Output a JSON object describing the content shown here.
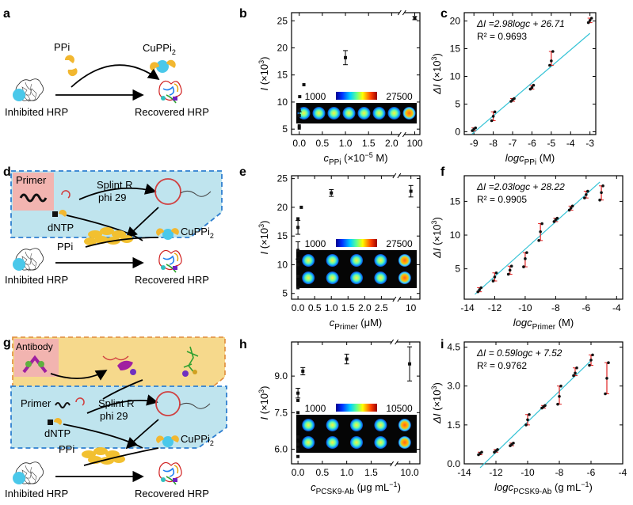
{
  "panels": {
    "a": {
      "letter": "a",
      "ppi": "PPi",
      "product": "CuPPi",
      "product_sub": "2",
      "left_label": "Inhibited HRP",
      "right_label": "Recovered HRP"
    },
    "d": {
      "letter": "d",
      "primer": "Primer",
      "splint": "Splint R",
      "phi": "phi 29",
      "dntp": "dNTP",
      "ppi": "PPi",
      "product": "CuPPi",
      "product_sub": "2",
      "left_label": "Inhibited HRP",
      "right_label": "Recovered HRP"
    },
    "g": {
      "letter": "g",
      "antibody": "Antibody",
      "primer": "Primer",
      "splint": "Splint R",
      "phi": "phi 29",
      "dntp": "dNTP",
      "ppi": "PPi",
      "product": "CuPPi",
      "product_sub": "2",
      "left_label": "Inhibited HRP",
      "right_label": "Recovered HRP"
    }
  },
  "colors": {
    "marker": "#111111",
    "fit_line": "#35c3d6",
    "errbar_red": "#e02020",
    "box_blue": "#bfe4ee",
    "box_border": "#2f7fd0",
    "box_yellow": "#f6d98c",
    "box_orange": "#e08a3a",
    "primer_bg": "#f2b4b0"
  },
  "chart_data": [
    {
      "id": "b",
      "letter": "b",
      "type": "scatter",
      "ylabel_italic": "I",
      "ylabel_rest": " (×10",
      "ylabel_sup": "3",
      "ylabel_end": ")",
      "xlabel_main": "c",
      "xlabel_sub": "PPi",
      "xlabel_rest": "  (×10",
      "xlabel_sup": "−5",
      "xlabel_end": " M)",
      "ylim": [
        4,
        26.5
      ],
      "yticks": [
        5,
        10,
        15,
        20,
        25
      ],
      "xticks": [
        "0.0",
        "0.5",
        "1.0",
        "1.5",
        "2.0",
        "100"
      ],
      "x_break": true,
      "colorbar": {
        "min": "1000",
        "max": "27500",
        "rows": 1
      },
      "points": [
        {
          "x": 0.0,
          "y": 5.2
        },
        {
          "x": 0.0,
          "y": 5.6
        },
        {
          "x": 0.0,
          "y": 7.5,
          "err": 0.7
        },
        {
          "x": 0.0,
          "y": 8.5
        },
        {
          "x": 0.01,
          "y": 11.0
        },
        {
          "x": 0.1,
          "y": 13.2
        },
        {
          "x": 1.0,
          "y": 18.2,
          "err": 1.3
        },
        {
          "x": 100,
          "y": 25.5,
          "err": 0.3
        }
      ]
    },
    {
      "id": "c",
      "letter": "c",
      "type": "scatter",
      "ylabel_italic": "ΔI",
      "ylabel_rest": " (×10",
      "ylabel_sup": "3",
      "ylabel_end": ")",
      "xlabel_main": "logc",
      "xlabel_sub": "PPi",
      "xlabel_rest": " (M)",
      "xlabel_sup": "",
      "xlabel_end": "",
      "xlim": [
        -9.5,
        -2.7
      ],
      "ylim": [
        -0.5,
        21.5
      ],
      "xticks": [
        -9,
        -8,
        -7,
        -6,
        -5,
        -4,
        -3
      ],
      "yticks": [
        0,
        5,
        10,
        15,
        20
      ],
      "equation": "ΔI =2.98logc + 26.71",
      "r2": "R² = 0.9693",
      "fit": {
        "slope": 2.98,
        "intercept": 26.71,
        "x0": -9.1,
        "x1": -3.0
      },
      "points": [
        {
          "x": -9,
          "ys": [
            0.2,
            0.5,
            0.7
          ]
        },
        {
          "x": -8,
          "ys": [
            2.0,
            2.8,
            3.6
          ]
        },
        {
          "x": -7,
          "ys": [
            5.5,
            5.8,
            6.0
          ]
        },
        {
          "x": -6,
          "ys": [
            7.7,
            8.0,
            8.4
          ]
        },
        {
          "x": -5,
          "ys": [
            12.0,
            12.8,
            14.5
          ]
        },
        {
          "x": -3,
          "ys": [
            19.7,
            20.1,
            20.5
          ]
        }
      ]
    },
    {
      "id": "e",
      "letter": "e",
      "type": "scatter",
      "ylabel_italic": "I",
      "ylabel_rest": " (×10",
      "ylabel_sup": "3",
      "ylabel_end": ")",
      "xlabel_main": "c",
      "xlabel_sub": "Primer",
      "xlabel_rest": " (μM)",
      "xlabel_sup": "",
      "xlabel_end": "",
      "ylim": [
        4,
        25.5
      ],
      "yticks": [
        5,
        10,
        15,
        20,
        25
      ],
      "xticks": [
        "0.0",
        "0.5",
        "1.0",
        "1.5",
        "2.0",
        "2.5",
        "10"
      ],
      "x_break": true,
      "colorbar": {
        "min": "1000",
        "max": "27500",
        "rows": 2
      },
      "points": [
        {
          "x": 0.0,
          "y": 6.0
        },
        {
          "x": 0.0,
          "y": 8.0
        },
        {
          "x": 0.0,
          "y": 10.0
        },
        {
          "x": 0.0,
          "y": 11.0
        },
        {
          "x": 0.0,
          "y": 12.5,
          "err": 1.5
        },
        {
          "x": 0.0,
          "y": 16.5,
          "err": 1.2
        },
        {
          "x": 0.0,
          "y": 18.0
        },
        {
          "x": 0.1,
          "y": 20.0
        },
        {
          "x": 1.0,
          "y": 22.5,
          "err": 0.6
        },
        {
          "x": 10,
          "y": 22.8,
          "err": 1.0
        }
      ]
    },
    {
      "id": "f",
      "letter": "f",
      "type": "scatter",
      "ylabel_italic": "ΔI",
      "ylabel_rest": " (×10",
      "ylabel_sup": "3",
      "ylabel_end": ")",
      "xlabel_main": "logc",
      "xlabel_sub": "Primer",
      "xlabel_rest": " (M)",
      "xlabel_sup": "",
      "xlabel_end": "",
      "xlim": [
        -14,
        -3.6
      ],
      "ylim": [
        0.5,
        18.8
      ],
      "xticks": [
        -14,
        -12,
        -10,
        -8,
        -6,
        -4
      ],
      "yticks": [
        5,
        10,
        15
      ],
      "xtick_labels": [
        "",
        "-12",
        "-10",
        "-8",
        "-6",
        "-4"
      ],
      "xtick_extra": "-14",
      "equation": "ΔI =2.03logc + 28.22",
      "r2": "R² = 0.9905",
      "fit": {
        "slope": 2.03,
        "intercept": 28.22,
        "x0": -13.3,
        "x1": -5.1
      },
      "points": [
        {
          "x": -13,
          "ys": [
            1.6,
            1.9,
            2.2
          ]
        },
        {
          "x": -12,
          "ys": [
            3.2,
            3.8,
            4.4
          ]
        },
        {
          "x": -11,
          "ys": [
            4.2,
            4.8,
            5.4
          ]
        },
        {
          "x": -10,
          "ys": [
            5.3,
            6.5,
            7.4
          ]
        },
        {
          "x": -9,
          "ys": [
            9.2,
            10.5,
            11.7
          ]
        },
        {
          "x": -8,
          "ys": [
            12.0,
            12.3,
            12.5
          ]
        },
        {
          "x": -7,
          "ys": [
            13.7,
            14.0,
            14.3
          ]
        },
        {
          "x": -6,
          "ys": [
            15.5,
            16.0,
            16.5
          ]
        },
        {
          "x": -5,
          "ys": [
            15.2,
            16.3,
            17.3
          ]
        }
      ]
    },
    {
      "id": "h",
      "letter": "h",
      "type": "scatter",
      "ylabel_italic": "I",
      "ylabel_rest": " (×10",
      "ylabel_sup": "3",
      "ylabel_end": ")",
      "xlabel_main": "c",
      "xlabel_sub": "PCSK9-Ab",
      "xlabel_rest": " (μg mL",
      "xlabel_sup": "−1",
      "xlabel_end": ")",
      "ylim": [
        5.4,
        10.4
      ],
      "yticks": [
        6.0,
        7.5,
        9.0
      ],
      "ytick_labels": [
        "6.0",
        "7.5",
        "9.0"
      ],
      "xticks": [
        "0.0",
        "0.5",
        "1.0",
        "1.5",
        "10.0"
      ],
      "x_break": true,
      "colorbar": {
        "min": "1000",
        "max": "10500",
        "rows": 2
      },
      "points": [
        {
          "x": 0.0,
          "y": 5.7
        },
        {
          "x": 0.0,
          "y": 6.0
        },
        {
          "x": 0.0,
          "y": 6.2
        },
        {
          "x": 0.0,
          "y": 6.5
        },
        {
          "x": 0.0,
          "y": 7.5
        },
        {
          "x": 0.0,
          "y": 8.0
        },
        {
          "x": 0.0,
          "y": 8.3,
          "err": 0.2
        },
        {
          "x": 0.1,
          "y": 9.2,
          "err": 0.15
        },
        {
          "x": 1.0,
          "y": 9.7,
          "err": 0.2
        },
        {
          "x": 10.0,
          "y": 9.5,
          "err": 0.7
        }
      ]
    },
    {
      "id": "i",
      "letter": "i",
      "type": "scatter",
      "ylabel_italic": "ΔI",
      "ylabel_rest": " (×10",
      "ylabel_sup": "3",
      "ylabel_end": ")",
      "xlabel_main": "logc",
      "xlabel_sub": "PCSK9-Ab",
      "xlabel_rest": " (g mL",
      "xlabel_sup": "−1",
      "xlabel_end": ")",
      "xlim": [
        -14,
        -4
      ],
      "ylim": [
        0,
        4.7
      ],
      "xticks": [
        -14,
        -12,
        -10,
        -8,
        -6,
        -4
      ],
      "yticks": [
        0.0,
        1.5,
        3.0,
        4.5
      ],
      "ytick_labels": [
        "0.0",
        "1.5",
        "3.0",
        "4.5"
      ],
      "equation": "ΔI = 0.59logc + 7.52",
      "r2": "R² = 0.9762",
      "fit": {
        "slope": 0.59,
        "intercept": 7.52,
        "x0": -13.0,
        "x1": -6.0
      },
      "points": [
        {
          "x": -13,
          "ys": [
            0.35,
            0.4,
            0.45
          ]
        },
        {
          "x": -12,
          "ys": [
            0.45,
            0.5,
            0.55
          ]
        },
        {
          "x": -11,
          "ys": [
            0.7,
            0.75,
            0.8
          ]
        },
        {
          "x": -10,
          "ys": [
            1.5,
            1.7,
            1.9
          ]
        },
        {
          "x": -9,
          "ys": [
            2.15,
            2.2,
            2.25
          ]
        },
        {
          "x": -8,
          "ys": [
            2.3,
            2.6,
            3.0
          ]
        },
        {
          "x": -7,
          "ys": [
            3.4,
            3.5,
            3.7
          ]
        },
        {
          "x": -6,
          "ys": [
            3.8,
            4.0,
            4.2
          ]
        },
        {
          "x": -5,
          "ys": [
            2.7,
            3.3,
            3.9
          ]
        }
      ]
    }
  ]
}
